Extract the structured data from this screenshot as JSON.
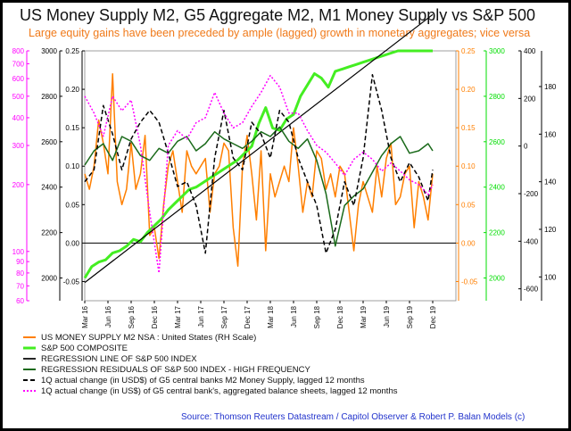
{
  "chart_data": {
    "type": "line",
    "title": "US Money Supply M2, G5 Aggregate M2, M1 Money Supply vs S&P 500",
    "subtitle": "Large equity gains have been preceded by ample (lagged) growth in monetary aggregates; vice versa",
    "source": "Source:  Thomson Reuters Datastream  / Capitol Observer & Robert P. Balan Models (c)",
    "x_ticks": [
      "Mar 16",
      "Jun 16",
      "Sep 16",
      "Dec 16",
      "Mar 17",
      "Jun 17",
      "Sep 17",
      "Dec 17",
      "Mar 18",
      "Jun 18",
      "Sep 18",
      "Dec 18",
      "Mar 19",
      "Jun 19",
      "Sep 19",
      "Dec 19"
    ],
    "x_range": [
      0,
      16
    ],
    "axes": {
      "left_magenta": {
        "color": "#ff00ff",
        "ticks": [
          "800",
          "700",
          "600",
          "500",
          "400",
          "300",
          "200",
          "100",
          "90",
          "80",
          "70",
          "60"
        ],
        "range": [
          60,
          800
        ],
        "scale": "log"
      },
      "left_black": {
        "color": "#000000",
        "ticks": [
          "3000",
          "2800",
          "2600",
          "2400",
          "2200",
          "2000"
        ],
        "range": [
          1900,
          3000
        ]
      },
      "left_inner": {
        "color": "#000000",
        "ticks": [
          "0.25",
          "0.20",
          "0.15",
          "0.10",
          "0.05",
          "0.00",
          "-0.05"
        ],
        "range": [
          -0.075,
          0.25
        ]
      },
      "right_orange": {
        "color": "#ff7f00",
        "ticks": [
          "0.25",
          "0.20",
          "0.15",
          "0.10",
          "0.05",
          "0.00",
          "-0.05"
        ],
        "range": [
          -0.075,
          0.25
        ]
      },
      "right_green": {
        "color": "#00dd00",
        "ticks": [
          "3000",
          "2800",
          "2600",
          "2400",
          "2200",
          "2000"
        ],
        "range": [
          1900,
          3000
        ]
      },
      "right_black": {
        "color": "#000000",
        "ticks": [
          "400",
          "200",
          "0",
          "-200",
          "-400",
          "-600"
        ],
        "range": [
          -650,
          400
        ]
      },
      "right_outer": {
        "color": "#000000",
        "ticks": [
          "180",
          "160",
          "140",
          "120",
          "100"
        ],
        "range": [
          90,
          195
        ]
      }
    },
    "zero_line": 0,
    "series": [
      {
        "name": "US MONEY SUPPLY M2 NSA : United States (RH Scale)",
        "color": "#ff7f00",
        "width": 1.5,
        "dash": "",
        "axis": "right_orange",
        "x": [
          0,
          0.2,
          0.4,
          0.6,
          0.8,
          1.0,
          1.2,
          1.4,
          1.6,
          1.8,
          2.0,
          2.2,
          2.4,
          2.6,
          2.8,
          3.0,
          3.2,
          3.4,
          3.6,
          3.8,
          4.0,
          4.2,
          4.4,
          4.6,
          4.8,
          5.0,
          5.2,
          5.4,
          5.6,
          5.8,
          6.0,
          6.2,
          6.4,
          6.6,
          6.8,
          7.0,
          7.2,
          7.4,
          7.6,
          7.8,
          8.0,
          8.2,
          8.4,
          8.6,
          8.8,
          9.0,
          9.2,
          9.4,
          9.6,
          9.8,
          10.0,
          10.2,
          10.4,
          10.6,
          10.8,
          11.0,
          11.2,
          11.4,
          11.6,
          11.8,
          12.0,
          12.2,
          12.4,
          12.6,
          12.8,
          13.0,
          13.2,
          13.4,
          13.6,
          13.8,
          14.0,
          14.2,
          14.4,
          14.6,
          14.8,
          15.0
        ],
        "values": [
          0.09,
          0.07,
          0.1,
          0.16,
          0.13,
          0.09,
          0.22,
          0.08,
          0.05,
          0.07,
          0.13,
          0.07,
          0.09,
          0.14,
          0.01,
          0.02,
          -0.02,
          0.05,
          0.1,
          0.12,
          0.08,
          0.04,
          0.12,
          0.1,
          0.09,
          0.1,
          0.11,
          0.04,
          0.09,
          0.1,
          0.13,
          0.12,
          0.02,
          -0.03,
          0.1,
          0.14,
          0.09,
          0.03,
          0.12,
          -0.01,
          0.09,
          0.06,
          0.08,
          0.1,
          0.08,
          0.15,
          0.1,
          0.04,
          0.08,
          0.06,
          0.12,
          0.11,
          0.07,
          0.09,
          0.06,
          0.1,
          0.09,
          0.04,
          -0.01,
          0.05,
          0.08,
          0.06,
          0.04,
          0.1,
          0.06,
          0.11,
          0.13,
          0.05,
          0.06,
          0.09,
          0.1,
          0.02,
          0.08,
          0.06,
          0.03,
          0.09
        ]
      },
      {
        "name": "S&P 500 COMPOSITE",
        "color": "#44ee22",
        "width": 3,
        "dash": "",
        "axis": "right_green",
        "x": [
          0,
          0.3,
          0.6,
          0.9,
          1.2,
          1.5,
          1.8,
          2.1,
          2.4,
          2.7,
          3.0,
          3.3,
          3.6,
          3.9,
          4.2,
          4.5,
          4.8,
          5.1,
          5.4,
          5.7,
          6.0,
          6.3,
          6.6,
          6.9,
          7.2,
          7.5,
          7.8,
          8.1,
          8.4,
          8.7,
          9.0,
          9.3,
          9.6,
          9.9,
          10.2,
          10.5,
          10.8,
          11.1,
          11.4,
          11.7,
          12.0,
          12.3,
          12.6,
          12.9,
          13.2,
          13.5,
          13.8,
          14.1,
          14.4,
          14.7,
          15.0
        ],
        "values": [
          2000,
          2050,
          2070,
          2080,
          2110,
          2120,
          2140,
          2170,
          2160,
          2200,
          2230,
          2260,
          2300,
          2330,
          2360,
          2390,
          2400,
          2420,
          2440,
          2460,
          2480,
          2500,
          2520,
          2550,
          2580,
          2680,
          2750,
          2660,
          2650,
          2700,
          2720,
          2800,
          2850,
          2900,
          2880,
          2840,
          2910,
          2920,
          2930,
          2940,
          2950,
          2960,
          2970,
          2980,
          2990,
          3000,
          3000,
          3000,
          3000,
          3000,
          3000
        ]
      },
      {
        "name": "REGRESSION LINE OF S&P 500 INDEX",
        "color": "#000000",
        "width": 1.2,
        "dash": "",
        "axis": "right_green",
        "x": [
          0,
          15
        ],
        "values": [
          1980,
          3160
        ]
      },
      {
        "name": "REGRESSION RESIDUALS OF S&P 500 INDEX - HIGH FREQUENCY",
        "color": "#1a6a1a",
        "width": 1.5,
        "dash": "",
        "axis": "right_black",
        "x": [
          0,
          0.4,
          0.8,
          1.2,
          1.6,
          2.0,
          2.4,
          2.8,
          3.2,
          3.6,
          4.0,
          4.4,
          4.8,
          5.2,
          5.6,
          6.0,
          6.4,
          6.8,
          7.2,
          7.6,
          8.0,
          8.4,
          8.8,
          9.2,
          9.6,
          10.0,
          10.4,
          10.8,
          11.2,
          11.6,
          12.0,
          12.4,
          12.8,
          13.2,
          13.6,
          14.0,
          14.4,
          14.8,
          15.0
        ],
        "values": [
          -80,
          -20,
          10,
          -60,
          40,
          20,
          -40,
          -60,
          -10,
          -30,
          20,
          40,
          -20,
          10,
          60,
          30,
          10,
          -10,
          20,
          60,
          40,
          80,
          20,
          -10,
          30,
          -60,
          -200,
          -420,
          -250,
          -210,
          -180,
          -110,
          -40,
          10,
          40,
          -30,
          -20,
          10,
          -20
        ]
      },
      {
        "name": "1Q actual change (in USD$) of G5 central banks M2 Money Supply, lagged 12 months",
        "color": "#000000",
        "width": 1.5,
        "dash": "5,3",
        "axis": "right_outer",
        "x": [
          0,
          0.4,
          0.8,
          1.2,
          1.6,
          2.0,
          2.4,
          2.8,
          3.2,
          3.6,
          4.0,
          4.4,
          4.8,
          5.2,
          5.6,
          6.0,
          6.4,
          6.8,
          7.2,
          7.6,
          8.0,
          8.4,
          8.8,
          9.2,
          9.6,
          10.0,
          10.4,
          10.8,
          11.2,
          11.6,
          12.0,
          12.4,
          12.8,
          13.2,
          13.6,
          14.0,
          14.4,
          14.8,
          15.0
        ],
        "values": [
          140,
          145,
          172,
          160,
          145,
          158,
          165,
          170,
          165,
          152,
          138,
          140,
          130,
          110,
          150,
          170,
          150,
          145,
          165,
          160,
          150,
          170,
          165,
          150,
          140,
          130,
          110,
          120,
          140,
          130,
          150,
          185,
          170,
          150,
          140,
          148,
          142,
          132,
          145
        ]
      },
      {
        "name": "1Q actual change (in US$) of G5 central bank's, aggregated balance sheets, lagged 12 months",
        "color": "#ff00ff",
        "width": 1.5,
        "dash": "2,2",
        "axis": "left_magenta",
        "x": [
          0,
          0.4,
          0.8,
          1.2,
          1.6,
          2.0,
          2.4,
          2.8,
          3.2,
          3.6,
          4.0,
          4.4,
          4.8,
          5.2,
          5.6,
          6.0,
          6.4,
          6.8,
          7.2,
          7.6,
          8.0,
          8.4,
          8.8,
          9.2,
          9.6,
          10.0,
          10.4,
          10.8,
          11.2,
          11.6,
          12.0,
          12.4,
          12.8,
          13.2,
          13.6,
          14.0,
          14.4,
          14.8,
          15.0
        ],
        "values": [
          500,
          420,
          330,
          500,
          430,
          480,
          300,
          150,
          80,
          300,
          350,
          320,
          380,
          400,
          520,
          420,
          360,
          380,
          450,
          520,
          620,
          550,
          420,
          420,
          350,
          300,
          280,
          250,
          220,
          260,
          280,
          260,
          230,
          250,
          230,
          210,
          200,
          180,
          200
        ]
      }
    ],
    "legend_placement": "bottom"
  }
}
